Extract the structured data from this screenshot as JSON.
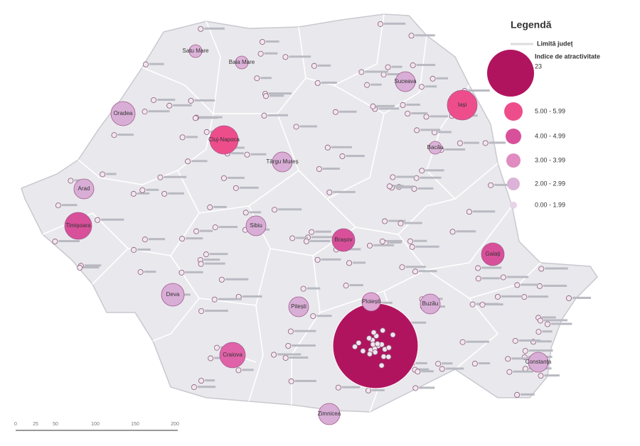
{
  "legend": {
    "title": "Legendă",
    "border_label": "Limită județ",
    "index_label": "Indice de atractivitate",
    "classes": [
      "23",
      "5.00 - 5.99",
      "4.00 - 4.99",
      "3.00 - 3.99",
      "2.00 - 2.99",
      "0.00 - 1.99"
    ]
  },
  "scale_bar": {
    "ticks": [
      0,
      25,
      50,
      100,
      150,
      200
    ]
  },
  "cities": [
    "Oradea",
    "Cluj-Napoca",
    "Timișoara",
    "Arad",
    "Târgu Mureș",
    "Sibiu",
    "Brașov",
    "Iași",
    "Suceava",
    "Galați",
    "Constanța",
    "Craiova",
    "Pitești",
    "Ploiești",
    "Buzău",
    "Baia Mare",
    "Satu Mare",
    "Bacău",
    "Deva",
    "Zimnicea"
  ]
}
